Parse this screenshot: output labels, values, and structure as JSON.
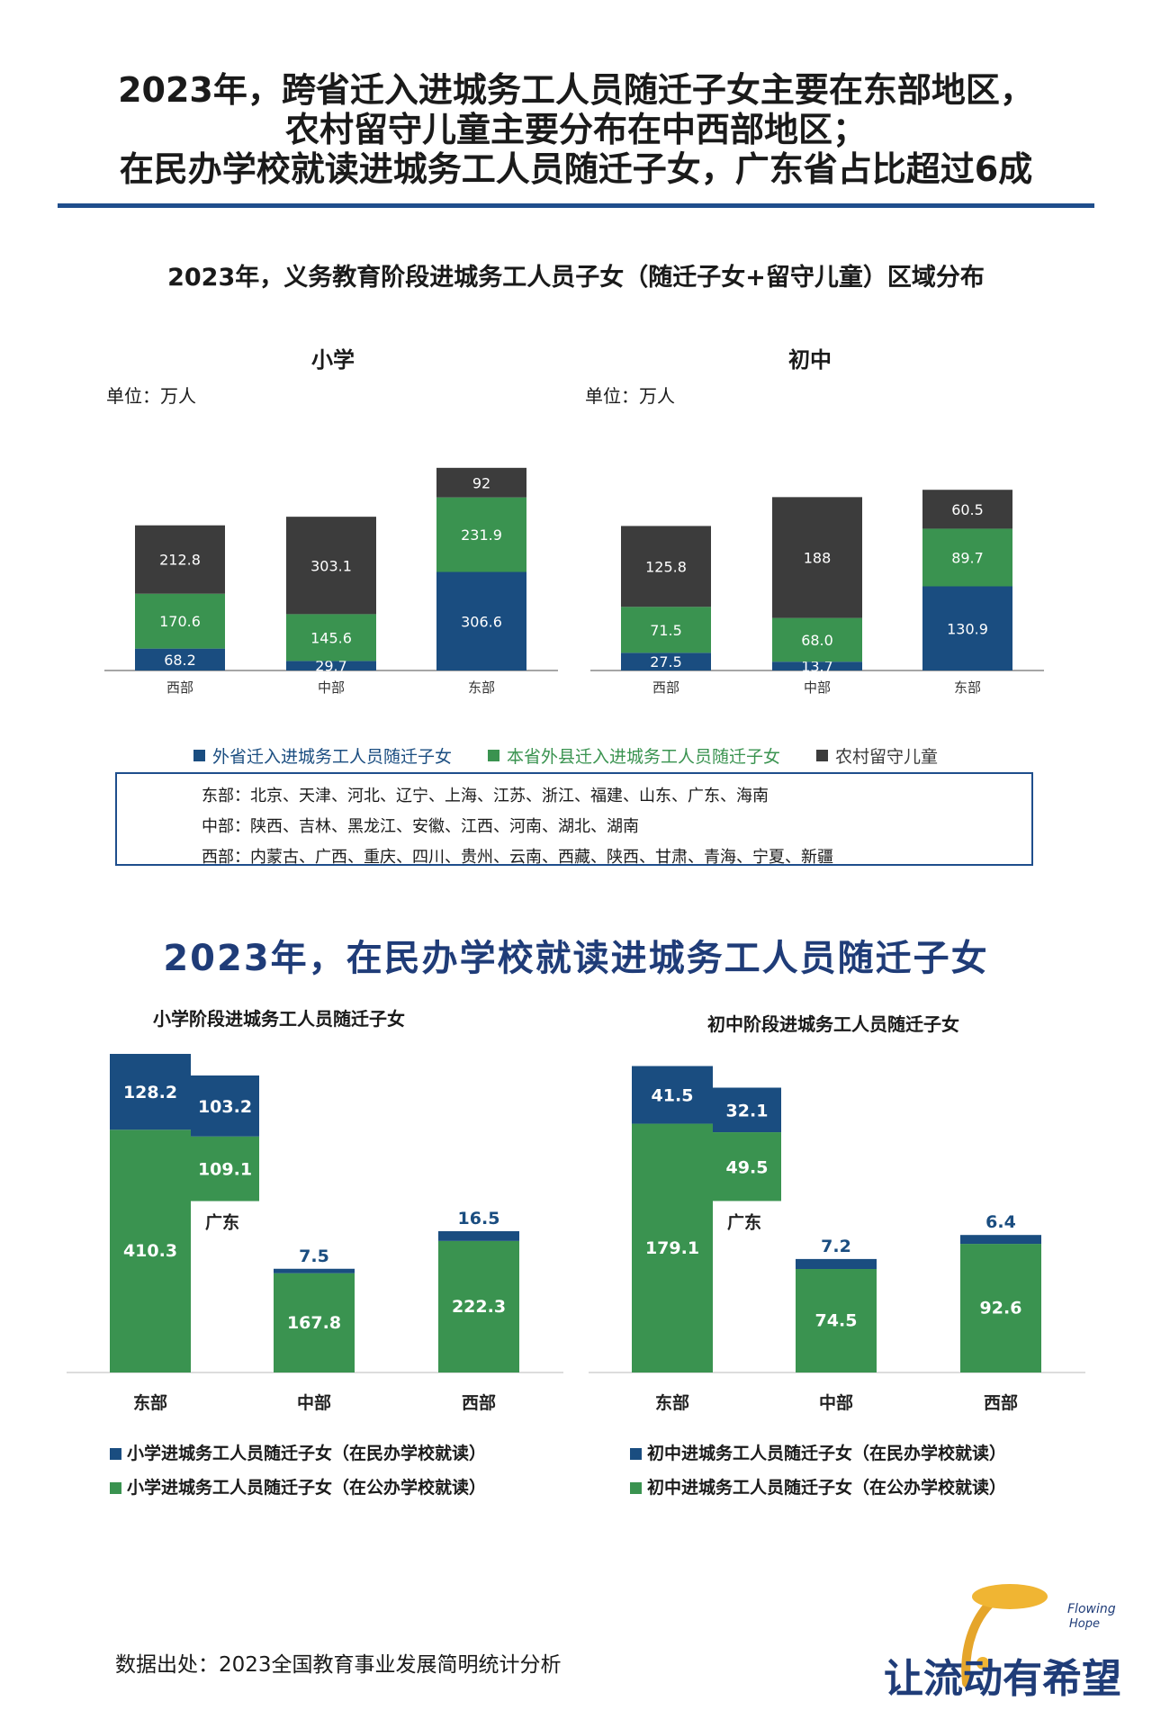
{
  "headline": [
    "2023年，跨省迁入进城务工人员随迁子女主要在东部地区，",
    "农村留守儿童主要分布在中西部地区；",
    "在民办学校就读进城务工人员随迁子女，广东省占比超过6成"
  ],
  "section1": {
    "title": "2023年，义务教育阶段进城务工人员子女（随迁子女+留守儿童）区域分布",
    "regions_note": [
      "东部：北京、天津、河北、辽宁、上海、江苏、浙江、福建、山东、广东、海南",
      "中部：陕西、吉林、黑龙江、安徽、江西、河南、湖北、湖南",
      "西部：内蒙古、广西、重庆、四川、贵州、云南、西藏、陕西、甘肃、青海、宁夏、新疆"
    ]
  },
  "section2": {
    "title": "2023年，在民办学校就读进城务工人员随迁子女"
  },
  "source": "数据出处：2023全国教育事业发展简明统计分析",
  "logo": {
    "text": "让流动有希望",
    "sub": "Flowing Hope"
  },
  "colors": {
    "blue": "#1a4d80",
    "green": "#3a9350",
    "dark": "#3c3c3c",
    "title_blue": "#1f3c78",
    "rule": "#1f4e8c"
  },
  "chart_data": [
    {
      "type": "bar",
      "stacked": true,
      "title": "小学",
      "unit": "单位：万人",
      "categories": [
        "西部",
        "中部",
        "东部"
      ],
      "series": [
        {
          "name": "外省迁入进城务工人员随迁子女",
          "values": [
            68.2,
            29.7,
            306.6
          ],
          "labels": [
            "68.2",
            "29.7",
            "306.6"
          ]
        },
        {
          "name": "本省外县迁入进城务工人员随迁子女",
          "values": [
            170.6,
            145.6,
            231.9
          ],
          "labels": [
            "170.6",
            "145.6",
            "231.9"
          ]
        },
        {
          "name": "农村留守儿童",
          "values": [
            212.8,
            303.1,
            92
          ],
          "labels": [
            "212.8",
            "303.1",
            "92"
          ]
        }
      ],
      "ylim": [
        0,
        700
      ]
    },
    {
      "type": "bar",
      "stacked": true,
      "title": "初中",
      "unit": "单位：万人",
      "categories": [
        "西部",
        "中部",
        "东部"
      ],
      "series": [
        {
          "name": "外省迁入进城务工人员随迁子女",
          "values": [
            27.5,
            13.7,
            130.9
          ],
          "labels": [
            "27.5",
            "13.7",
            "130.9"
          ]
        },
        {
          "name": "本省外县迁入进城务工人员随迁子女",
          "values": [
            71.5,
            68.0,
            89.7
          ],
          "labels": [
            "71.5",
            "68.0",
            "89.7"
          ]
        },
        {
          "name": "农村留守儿童",
          "values": [
            125.8,
            188,
            60.5
          ],
          "labels": [
            "125.8",
            "188",
            "60.5"
          ]
        }
      ],
      "ylim": [
        0,
        350
      ]
    },
    {
      "type": "bar",
      "stacked": true,
      "title": "小学阶段进城务工人员随迁子女",
      "categories": [
        "东部",
        "中部",
        "西部"
      ],
      "series": [
        {
          "name": "小学进城务工人员随迁子女（在民办学校就读）",
          "values": [
            128.2,
            7.5,
            16.5
          ],
          "labels": [
            "128.2",
            "7.5",
            "16.5"
          ]
        },
        {
          "name": "小学进城务工人员随迁子女（在公办学校就读）",
          "values": [
            410.3,
            167.8,
            222.3
          ],
          "labels": [
            "410.3",
            "167.8",
            "222.3"
          ]
        }
      ],
      "highlight": {
        "name": "广东",
        "private": 103.2,
        "public": 109.1,
        "labels": [
          "103.2",
          "109.1"
        ]
      },
      "ylim": [
        0,
        540
      ]
    },
    {
      "type": "bar",
      "stacked": true,
      "title": "初中阶段进城务工人员随迁子女",
      "categories": [
        "东部",
        "中部",
        "西部"
      ],
      "series": [
        {
          "name": "初中进城务工人员随迁子女（在民办学校就读）",
          "values": [
            41.5,
            7.2,
            6.4
          ],
          "labels": [
            "41.5",
            "7.2",
            "6.4"
          ]
        },
        {
          "name": "初中进城务工人员随迁子女（在公办学校就读）",
          "values": [
            179.1,
            74.5,
            92.6
          ],
          "labels": [
            "179.1",
            "74.5",
            "92.6"
          ]
        }
      ],
      "highlight": {
        "name": "广东",
        "private": 32.1,
        "public": 49.5,
        "labels": [
          "32.1",
          "49.5"
        ]
      },
      "ylim": [
        0,
        230
      ]
    }
  ]
}
